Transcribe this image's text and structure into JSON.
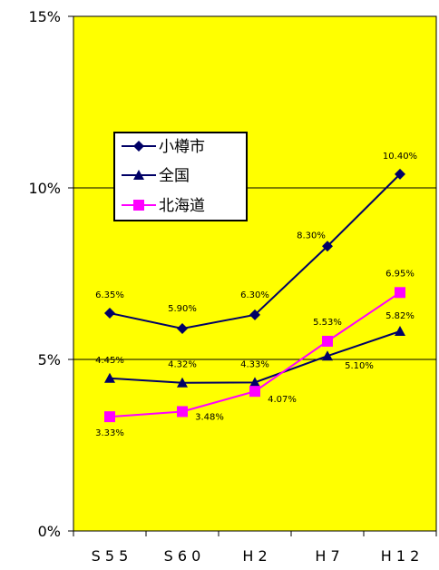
{
  "chart_data": {
    "type": "line",
    "categories": [
      "S55",
      "S60",
      "H2",
      "H7",
      "H12"
    ],
    "category_display": [
      "S 5 5",
      "S 6 0",
      "H 2",
      "H 7",
      "H 1 2"
    ],
    "yticks": [
      0,
      5,
      10,
      15
    ],
    "ytick_labels": [
      "0%",
      "5%",
      "10%",
      "15%"
    ],
    "ylim": [
      0,
      15
    ],
    "grid": "horizontal",
    "legend_position": "upper-left",
    "plot_background": "#FFFF00",
    "series": [
      {
        "name": "小樽市",
        "marker": "diamond",
        "color": "#000066",
        "values": [
          6.35,
          5.9,
          6.3,
          8.3,
          10.4
        ],
        "labels": [
          "6.35%",
          "5.90%",
          "6.30%",
          "8.30%",
          "10.40%"
        ]
      },
      {
        "name": "全国",
        "marker": "triangle",
        "color": "#000066",
        "values": [
          4.45,
          4.32,
          4.33,
          5.1,
          5.82
        ],
        "labels": [
          "4.45%",
          "4.32%",
          "4.33%",
          "5.10%",
          "5.82%"
        ]
      },
      {
        "name": "北海道",
        "marker": "square",
        "color": "#FF00FF",
        "values": [
          3.33,
          3.48,
          4.07,
          5.53,
          6.95
        ],
        "labels": [
          "3.33%",
          "3.48%",
          "4.07%",
          "5.53%",
          "6.95%"
        ]
      }
    ]
  }
}
